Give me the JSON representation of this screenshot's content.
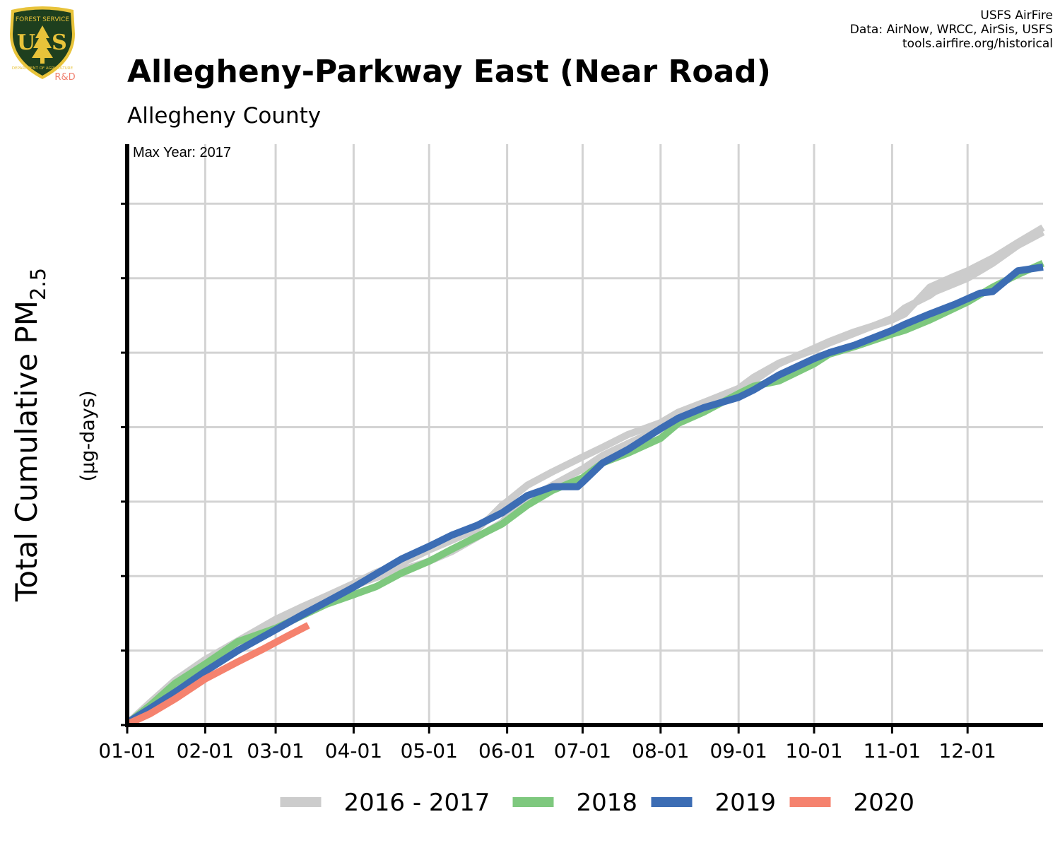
{
  "header": {
    "title": "Allegheny-Parkway East (Near Road)",
    "subtitle": "Allegheny County",
    "credits": [
      "USFS AirFire",
      "Data: AirNow, WRCC, AirSis, USFS",
      "tools.airfire.org/historical"
    ]
  },
  "logo": {
    "top_text": "FOREST SERVICE",
    "letters_left": "U",
    "letters_right": "S",
    "bottom_text": "DEPARTMENT OF AGRICULTURE",
    "tag": "R&D",
    "colors": {
      "shield": "#1e3f1e",
      "border": "#e8c33a",
      "tag": "#f08070"
    }
  },
  "chart_data": {
    "type": "line",
    "ylabel_main": "Total Cumulative PM",
    "ylabel_sub": "2.5",
    "ylabel_units": "(μg-days)",
    "annotation": "Max Year: 2017",
    "xlim": [
      1,
      365
    ],
    "ylim": [
      0,
      7.8
    ],
    "yticks": [
      0,
      1,
      2,
      3,
      4,
      5,
      6,
      7
    ],
    "y_tick_labels_visible": false,
    "x_ticks": [
      {
        "label": "01-01",
        "day": 1
      },
      {
        "label": "02-01",
        "day": 32
      },
      {
        "label": "03-01",
        "day": 60
      },
      {
        "label": "04-01",
        "day": 91
      },
      {
        "label": "05-01",
        "day": 121
      },
      {
        "label": "06-01",
        "day": 152
      },
      {
        "label": "07-01",
        "day": 182
      },
      {
        "label": "08-01",
        "day": 213
      },
      {
        "label": "09-01",
        "day": 244
      },
      {
        "label": "10-01",
        "day": 274
      },
      {
        "label": "11-01",
        "day": 305
      },
      {
        "label": "12-01",
        "day": 335
      }
    ],
    "grid": true,
    "legend_position": "bottom",
    "series": [
      {
        "name": "2016 - 2017",
        "color": "#cccccc",
        "x": [
          1,
          10,
          20,
          32,
          45,
          60,
          70,
          80,
          91,
          100,
          110,
          121,
          130,
          140,
          145,
          150,
          152,
          160,
          170,
          182,
          190,
          200,
          213,
          220,
          230,
          244,
          250,
          260,
          274,
          280,
          290,
          305,
          310,
          320,
          322,
          330,
          335,
          345,
          355,
          365
        ],
        "y": [
          0.02,
          0.3,
          0.6,
          0.88,
          1.13,
          1.42,
          1.58,
          1.73,
          1.9,
          2.05,
          2.17,
          2.35,
          2.48,
          2.63,
          2.78,
          2.95,
          3.0,
          3.22,
          3.4,
          3.6,
          3.73,
          3.9,
          4.06,
          4.2,
          4.33,
          4.52,
          4.67,
          4.86,
          5.04,
          5.13,
          5.26,
          5.46,
          5.6,
          5.77,
          5.82,
          5.93,
          6.0,
          6.2,
          6.44,
          6.62
        ]
      },
      {
        "name": "2016 - 2017",
        "color": "#cccccc",
        "x": [
          1,
          10,
          20,
          32,
          45,
          60,
          70,
          80,
          91,
          100,
          110,
          121,
          130,
          140,
          150,
          152,
          160,
          170,
          182,
          190,
          200,
          213,
          220,
          230,
          244,
          250,
          260,
          274,
          280,
          290,
          305,
          310,
          320,
          330,
          335,
          345,
          355,
          365
        ],
        "y": [
          0.01,
          0.2,
          0.45,
          0.75,
          1.05,
          1.35,
          1.5,
          1.68,
          1.87,
          1.98,
          2.08,
          2.2,
          2.33,
          2.52,
          2.72,
          2.8,
          3.02,
          3.22,
          3.44,
          3.62,
          3.78,
          3.98,
          4.1,
          4.26,
          4.44,
          4.62,
          4.85,
          5.06,
          5.15,
          5.28,
          5.44,
          5.52,
          5.88,
          6.03,
          6.1,
          6.27,
          6.48,
          6.68
        ]
      },
      {
        "name": "2018",
        "color": "#7ec87e",
        "x": [
          1,
          10,
          20,
          32,
          45,
          60,
          70,
          80,
          91,
          100,
          110,
          121,
          130,
          140,
          150,
          152,
          160,
          170,
          182,
          190,
          200,
          213,
          220,
          230,
          244,
          250,
          260,
          274,
          280,
          290,
          305,
          310,
          320,
          330,
          335,
          345,
          355,
          365
        ],
        "y": [
          0.02,
          0.26,
          0.56,
          0.82,
          1.12,
          1.3,
          1.46,
          1.62,
          1.75,
          1.86,
          2.04,
          2.2,
          2.36,
          2.53,
          2.7,
          2.75,
          2.95,
          3.15,
          3.32,
          3.52,
          3.65,
          3.85,
          4.05,
          4.2,
          4.45,
          4.55,
          4.62,
          4.85,
          4.98,
          5.08,
          5.25,
          5.3,
          5.44,
          5.6,
          5.68,
          5.88,
          6.05,
          6.2
        ]
      },
      {
        "name": "2019",
        "color": "#3c6db4",
        "x": [
          1,
          10,
          20,
          32,
          45,
          60,
          70,
          80,
          91,
          100,
          110,
          121,
          130,
          140,
          150,
          160,
          170,
          175,
          180,
          182,
          190,
          200,
          213,
          220,
          230,
          244,
          250,
          260,
          274,
          280,
          290,
          305,
          310,
          320,
          330,
          340,
          345,
          355,
          365
        ],
        "y": [
          0.03,
          0.22,
          0.44,
          0.72,
          1.0,
          1.28,
          1.47,
          1.65,
          1.85,
          2.03,
          2.23,
          2.4,
          2.55,
          2.68,
          2.85,
          3.08,
          3.2,
          3.2,
          3.2,
          3.26,
          3.52,
          3.7,
          3.98,
          4.12,
          4.26,
          4.4,
          4.5,
          4.7,
          4.92,
          5.0,
          5.1,
          5.3,
          5.38,
          5.52,
          5.65,
          5.8,
          5.82,
          6.1,
          6.15
        ]
      },
      {
        "name": "2020",
        "color": "#f5826e",
        "x": [
          1,
          10,
          20,
          32,
          45,
          55,
          65,
          73
        ],
        "y": [
          0.01,
          0.15,
          0.35,
          0.62,
          0.85,
          1.02,
          1.2,
          1.34
        ]
      }
    ],
    "legend": [
      {
        "label": "2016 - 2017",
        "color": "#cccccc"
      },
      {
        "label": "2018",
        "color": "#7ec87e"
      },
      {
        "label": "2019",
        "color": "#3c6db4"
      },
      {
        "label": "2020",
        "color": "#f5826e"
      }
    ]
  }
}
